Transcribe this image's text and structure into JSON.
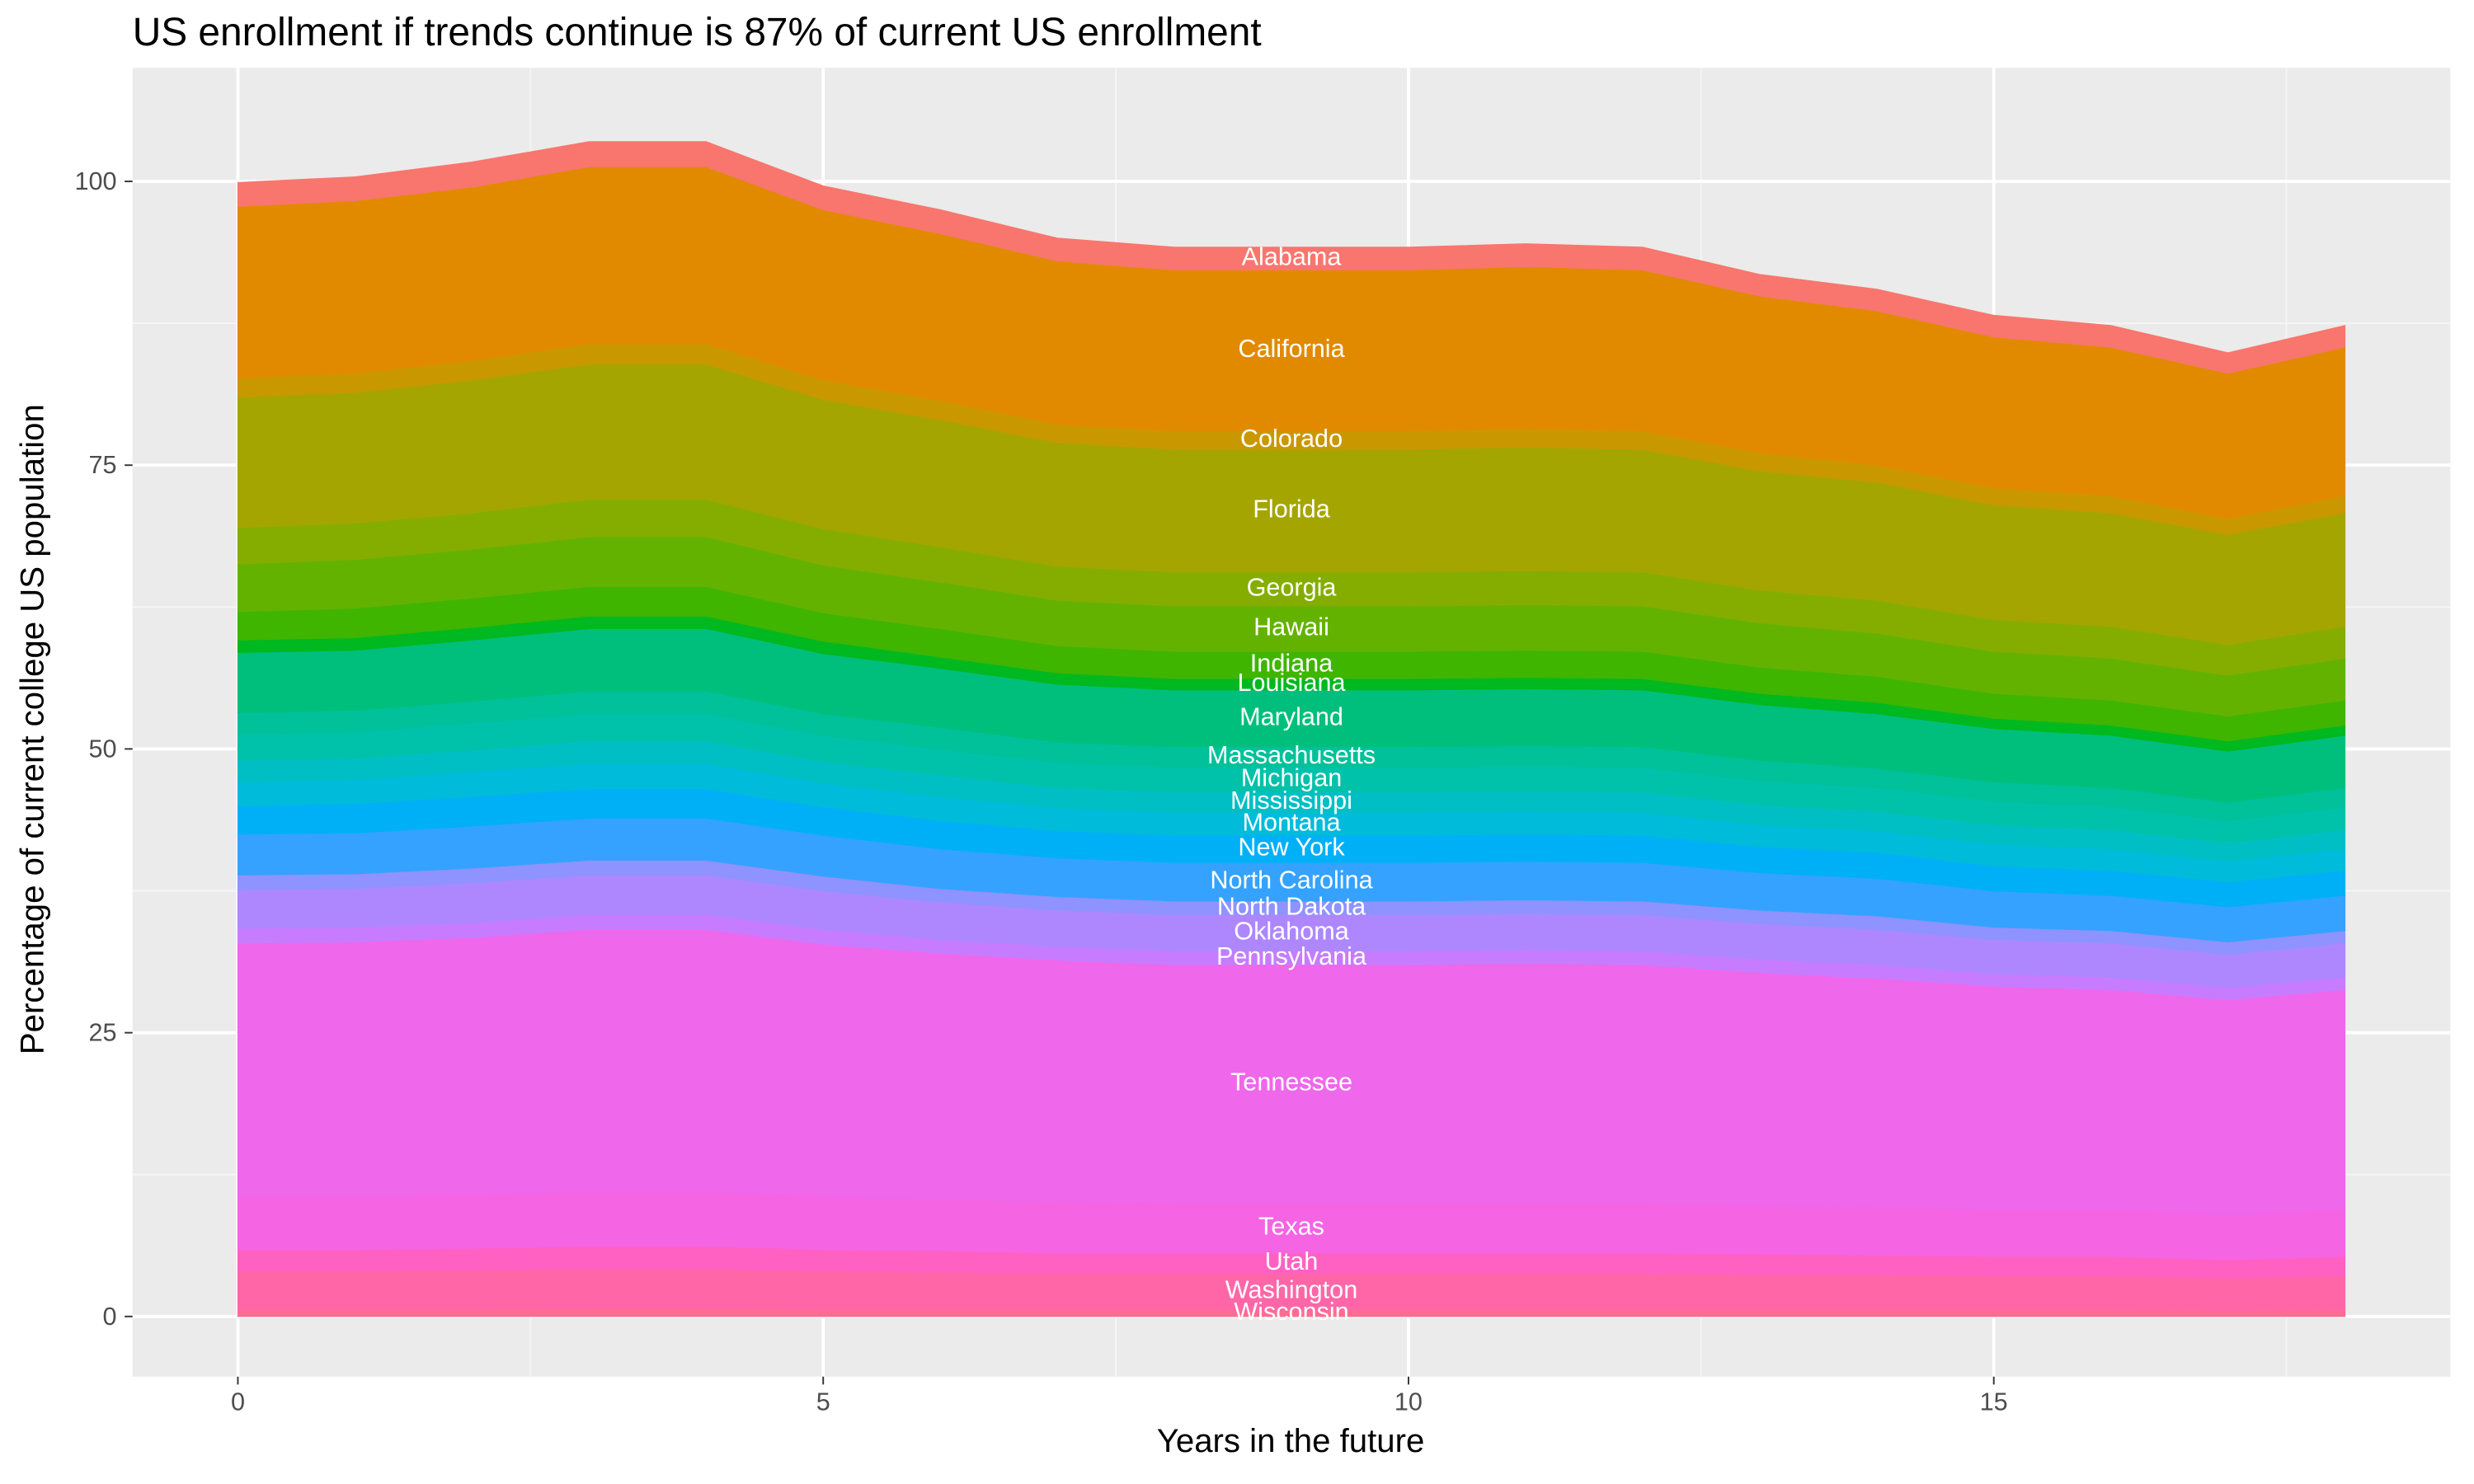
{
  "chart_data": {
    "type": "stacked_area",
    "title": "US enrollment if trends continue is 87% of current US enrollment",
    "x_label": "Years in the future",
    "y_label": "Percentage of current college US population",
    "x": [
      0,
      1,
      2,
      3,
      4,
      5,
      6,
      7,
      8,
      9,
      10,
      11,
      12,
      13,
      14,
      15,
      16,
      17,
      18
    ],
    "xlim": [
      -0.9,
      18.9
    ],
    "ylim": [
      -5.3,
      110
    ],
    "xticks": [
      0,
      5,
      10,
      15
    ],
    "yticks": [
      0,
      25,
      50,
      75,
      100
    ],
    "grid": true,
    "series": [
      {
        "name": "Wisconsin",
        "color": "#FF6C91",
        "values": [
          0.6,
          0.6,
          0.6,
          0.7,
          0.7,
          0.6,
          0.6,
          0.6,
          0.6,
          0.6,
          0.6,
          0.6,
          0.6,
          0.6,
          0.6,
          0.6,
          0.6,
          0.5,
          0.6
        ]
      },
      {
        "name": "Washington",
        "color": "#FF66A8",
        "values": [
          3.4,
          3.4,
          3.5,
          3.5,
          3.5,
          3.4,
          3.3,
          3.2,
          3.2,
          3.2,
          3.2,
          3.2,
          3.2,
          3.1,
          3.1,
          3.0,
          3.0,
          2.9,
          3.0
        ]
      },
      {
        "name": "Utah",
        "color": "#FF61C3",
        "values": [
          1.9,
          1.9,
          1.9,
          2.0,
          2.0,
          1.9,
          1.9,
          1.8,
          1.8,
          1.8,
          1.8,
          1.8,
          1.8,
          1.8,
          1.7,
          1.7,
          1.7,
          1.6,
          1.7
        ]
      },
      {
        "name": "Texas",
        "color": "#F564E3",
        "values": [
          4.7,
          4.7,
          4.7,
          4.8,
          4.8,
          4.7,
          4.5,
          4.5,
          4.4,
          4.4,
          4.4,
          4.4,
          4.4,
          4.3,
          4.2,
          4.1,
          4.1,
          4.0,
          4.1
        ]
      },
      {
        "name": "Tennessee",
        "color": "#EF67EB",
        "values": [
          22.3,
          22.4,
          22.7,
          23.1,
          23.1,
          22.2,
          21.7,
          21.3,
          21.0,
          21.0,
          21.0,
          21.1,
          21.0,
          20.5,
          20.2,
          19.7,
          19.4,
          18.9,
          19.4
        ]
      },
      {
        "name": "Pennsylvania",
        "color": "#C77CFF",
        "values": [
          1.3,
          1.3,
          1.3,
          1.3,
          1.3,
          1.3,
          1.2,
          1.2,
          1.2,
          1.2,
          1.2,
          1.2,
          1.2,
          1.2,
          1.2,
          1.1,
          1.1,
          1.1,
          1.1
        ]
      },
      {
        "name": "Oklahoma",
        "color": "#AE87FF",
        "values": [
          3.4,
          3.4,
          3.5,
          3.5,
          3.5,
          3.4,
          3.3,
          3.2,
          3.2,
          3.2,
          3.2,
          3.2,
          3.2,
          3.1,
          3.1,
          3.0,
          3.0,
          2.9,
          3.0
        ]
      },
      {
        "name": "North Dakota",
        "color": "#8F93FF",
        "values": [
          1.3,
          1.3,
          1.3,
          1.3,
          1.3,
          1.3,
          1.2,
          1.2,
          1.2,
          1.2,
          1.2,
          1.2,
          1.2,
          1.2,
          1.2,
          1.1,
          1.1,
          1.1,
          1.1
        ]
      },
      {
        "name": "North Carolina",
        "color": "#35A2FF",
        "values": [
          3.6,
          3.6,
          3.7,
          3.7,
          3.7,
          3.6,
          3.5,
          3.4,
          3.4,
          3.4,
          3.4,
          3.4,
          3.4,
          3.3,
          3.3,
          3.2,
          3.1,
          3.1,
          3.1
        ]
      },
      {
        "name": "New York",
        "color": "#00B0F6",
        "values": [
          2.5,
          2.6,
          2.6,
          2.6,
          2.6,
          2.5,
          2.5,
          2.4,
          2.4,
          2.4,
          2.4,
          2.4,
          2.4,
          2.3,
          2.3,
          2.2,
          2.2,
          2.2,
          2.2
        ]
      },
      {
        "name": "Montana",
        "color": "#00BBDA",
        "values": [
          2.1,
          2.1,
          2.2,
          2.2,
          2.2,
          2.1,
          2.1,
          2.0,
          2.0,
          2.0,
          2.0,
          2.0,
          2.0,
          1.9,
          1.9,
          1.9,
          1.9,
          1.8,
          1.9
        ]
      },
      {
        "name": "Mississippi",
        "color": "#00BFC4",
        "values": [
          1.9,
          1.9,
          1.9,
          2.0,
          2.0,
          1.9,
          1.9,
          1.8,
          1.8,
          1.8,
          1.8,
          1.8,
          1.8,
          1.8,
          1.7,
          1.7,
          1.7,
          1.6,
          1.7
        ]
      },
      {
        "name": "Michigan",
        "color": "#00C1AA",
        "values": [
          2.3,
          2.3,
          2.4,
          2.4,
          2.4,
          2.3,
          2.3,
          2.2,
          2.2,
          2.2,
          2.2,
          2.2,
          2.2,
          2.1,
          2.1,
          2.1,
          2.0,
          2.0,
          2.0
        ]
      },
      {
        "name": "Massachusetts",
        "color": "#00C19A",
        "values": [
          1.9,
          1.9,
          1.9,
          2.0,
          2.0,
          1.9,
          1.9,
          1.8,
          1.8,
          1.8,
          1.8,
          1.8,
          1.8,
          1.8,
          1.7,
          1.7,
          1.7,
          1.6,
          1.7
        ]
      },
      {
        "name": "Maryland",
        "color": "#00BF7D",
        "values": [
          5.3,
          5.3,
          5.4,
          5.5,
          5.5,
          5.3,
          5.2,
          5.1,
          5.0,
          5.0,
          5.0,
          5.0,
          5.0,
          4.9,
          4.8,
          4.7,
          4.6,
          4.5,
          4.6
        ]
      },
      {
        "name": "Louisiana",
        "color": "#00B81F",
        "values": [
          1.1,
          1.1,
          1.1,
          1.1,
          1.1,
          1.1,
          1.0,
          1.0,
          1.0,
          1.0,
          1.0,
          1.0,
          1.0,
          1.0,
          1.0,
          0.9,
          0.9,
          0.9,
          0.9
        ]
      },
      {
        "name": "Indiana",
        "color": "#3FB500",
        "values": [
          2.5,
          2.6,
          2.6,
          2.6,
          2.6,
          2.5,
          2.5,
          2.4,
          2.4,
          2.4,
          2.4,
          2.4,
          2.4,
          2.3,
          2.3,
          2.2,
          2.2,
          2.2,
          2.2
        ]
      },
      {
        "name": "Hawaii",
        "color": "#64B200",
        "values": [
          4.2,
          4.3,
          4.3,
          4.4,
          4.4,
          4.2,
          4.1,
          4.0,
          4.0,
          4.0,
          4.0,
          4.0,
          4.0,
          3.9,
          3.8,
          3.7,
          3.7,
          3.6,
          3.7
        ]
      },
      {
        "name": "Georgia",
        "color": "#85AD00",
        "values": [
          3.2,
          3.2,
          3.2,
          3.3,
          3.3,
          3.2,
          3.1,
          3.0,
          3.0,
          3.0,
          3.0,
          3.0,
          3.0,
          2.9,
          2.9,
          2.8,
          2.8,
          2.7,
          2.8
        ]
      },
      {
        "name": "Florida",
        "color": "#A5A500",
        "values": [
          11.5,
          11.5,
          11.7,
          11.9,
          11.9,
          11.4,
          11.2,
          10.9,
          10.8,
          10.8,
          10.8,
          10.9,
          10.8,
          10.5,
          10.4,
          10.1,
          10.0,
          9.7,
          10.0
        ]
      },
      {
        "name": "Colorado",
        "color": "#C99800",
        "values": [
          1.7,
          1.7,
          1.7,
          1.8,
          1.8,
          1.7,
          1.7,
          1.6,
          1.6,
          1.6,
          1.6,
          1.6,
          1.6,
          1.6,
          1.5,
          1.5,
          1.5,
          1.4,
          1.5
        ]
      },
      {
        "name": "California",
        "color": "#E18A00",
        "values": [
          15.1,
          15.2,
          15.3,
          15.6,
          15.6,
          15.0,
          14.7,
          14.4,
          14.2,
          14.2,
          14.2,
          14.3,
          14.2,
          13.8,
          13.6,
          13.3,
          13.1,
          12.8,
          13.1
        ]
      },
      {
        "name": "Alabama",
        "color": "#F8766D",
        "values": [
          2.1,
          2.1,
          2.2,
          2.2,
          2.2,
          2.1,
          2.1,
          2.0,
          2.0,
          2.0,
          2.0,
          2.0,
          2.0,
          1.9,
          1.9,
          1.9,
          1.9,
          1.8,
          1.9
        ]
      }
    ],
    "label_x": 9
  }
}
